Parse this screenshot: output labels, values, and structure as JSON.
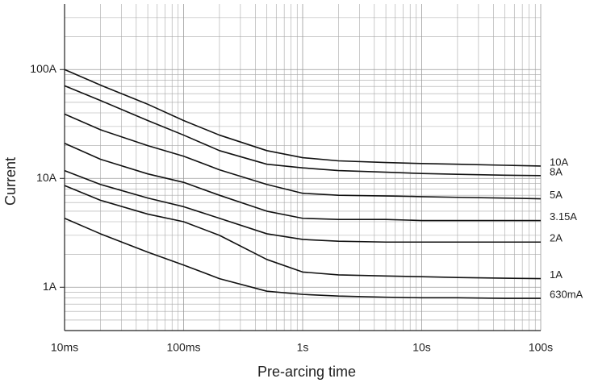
{
  "chart_data": {
    "type": "line",
    "log_x": true,
    "log_y": true,
    "grid": true,
    "x_label": "Pre-arcing time",
    "y_label": "Current",
    "xlim": [
      0.01,
      100
    ],
    "ylim": [
      0.4,
      400
    ],
    "xticks": [
      {
        "value": 0.01,
        "label": "10ms"
      },
      {
        "value": 0.1,
        "label": "100ms"
      },
      {
        "value": 1,
        "label": "1s"
      },
      {
        "value": 10,
        "label": "10s"
      },
      {
        "value": 100,
        "label": "100s"
      }
    ],
    "yticks": [
      {
        "value": 1,
        "label": "1A"
      },
      {
        "value": 10,
        "label": "10A"
      },
      {
        "value": 100,
        "label": "100A"
      }
    ],
    "minor_xticks": [
      0.02,
      0.03,
      0.04,
      0.05,
      0.06,
      0.07,
      0.08,
      0.09,
      0.2,
      0.3,
      0.4,
      0.5,
      0.6,
      0.7,
      0.8,
      0.9,
      2,
      3,
      4,
      5,
      6,
      7,
      8,
      9,
      20,
      30,
      40,
      50,
      60,
      70,
      80,
      90
    ],
    "minor_yticks": [
      0.5,
      0.6,
      0.7,
      0.8,
      0.9,
      2,
      3,
      4,
      5,
      6,
      7,
      8,
      9,
      20,
      30,
      40,
      50,
      60,
      70,
      80,
      90,
      200,
      300
    ],
    "x": [
      0.01,
      0.02,
      0.05,
      0.1,
      0.2,
      0.5,
      1,
      2,
      5,
      10,
      20,
      50,
      100
    ],
    "series": [
      {
        "name": "10A",
        "color": "#111111",
        "values": [
          100,
          72,
          48,
          34,
          25,
          18,
          15.5,
          14.5,
          14,
          13.7,
          13.5,
          13.2,
          13
        ]
      },
      {
        "name": "8A",
        "color": "#111111",
        "values": [
          71,
          52,
          34,
          25,
          18,
          13.5,
          12.5,
          11.8,
          11.4,
          11.1,
          10.9,
          10.7,
          10.6
        ]
      },
      {
        "name": "5A",
        "color": "#111111",
        "values": [
          39,
          28,
          20,
          16,
          12,
          8.8,
          7.3,
          7.0,
          6.9,
          6.8,
          6.7,
          6.6,
          6.5
        ]
      },
      {
        "name": "3.15A",
        "color": "#111111",
        "values": [
          21,
          15,
          11,
          9.2,
          7,
          5,
          4.3,
          4.2,
          4.2,
          4.1,
          4.1,
          4.1,
          4.1
        ]
      },
      {
        "name": "2A",
        "color": "#111111",
        "values": [
          11.8,
          8.8,
          6.6,
          5.5,
          4.3,
          3.1,
          2.75,
          2.65,
          2.6,
          2.6,
          2.6,
          2.6,
          2.6
        ]
      },
      {
        "name": "1A",
        "color": "#111111",
        "values": [
          8.6,
          6.3,
          4.7,
          4.0,
          3.0,
          1.8,
          1.38,
          1.3,
          1.27,
          1.25,
          1.23,
          1.21,
          1.2
        ]
      },
      {
        "name": "630mA",
        "color": "#111111",
        "values": [
          4.3,
          3.1,
          2.1,
          1.6,
          1.2,
          0.92,
          0.86,
          0.83,
          0.81,
          0.8,
          0.8,
          0.79,
          0.79
        ]
      }
    ]
  }
}
